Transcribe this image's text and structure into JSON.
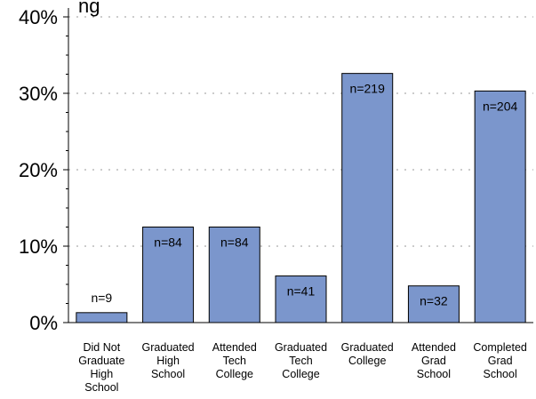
{
  "chart_data": {
    "type": "bar",
    "title_fragment": "ng",
    "categories": [
      [
        "Did Not",
        "Graduate",
        "High",
        "School"
      ],
      [
        "Graduated",
        "High",
        "School"
      ],
      [
        "Attended",
        "Tech",
        "College"
      ],
      [
        "Graduated",
        "Tech",
        "College"
      ],
      [
        "Graduated",
        "College"
      ],
      [
        "Attended",
        "Grad",
        "School"
      ],
      [
        "Completed",
        "Grad",
        "School"
      ]
    ],
    "values": [
      1.3,
      12.5,
      12.5,
      6.1,
      32.6,
      4.8,
      30.3
    ],
    "data_labels": [
      "n=9",
      "n=84",
      "n=84",
      "n=41",
      "n=219",
      "n=32",
      "n=204"
    ],
    "yticks": [
      0,
      10,
      20,
      30,
      40
    ],
    "ytick_labels": [
      "0%",
      "10%",
      "20%",
      "30%",
      "40%"
    ],
    "ylim": [
      0,
      40
    ],
    "grid": true,
    "bar_color": "#7b96cc",
    "bar_edge_color": "#000000"
  }
}
